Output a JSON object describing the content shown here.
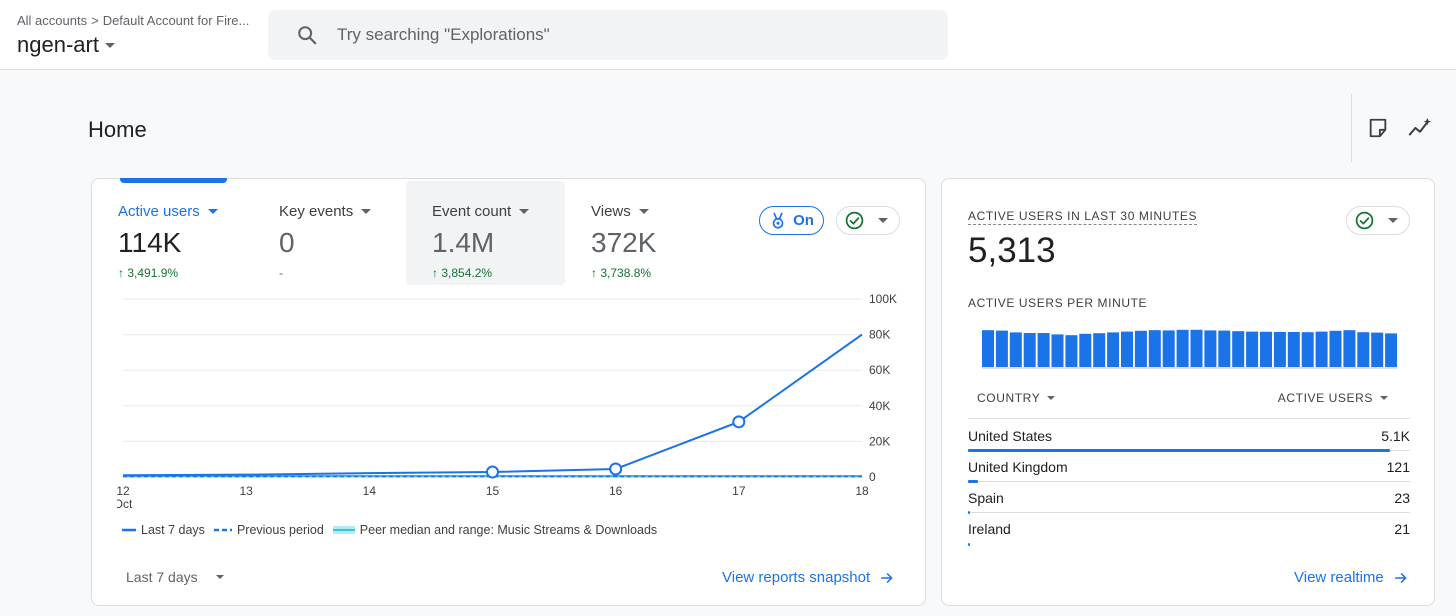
{
  "header": {
    "breadcrumb": [
      "All accounts",
      "Default Account for Fire..."
    ],
    "property": "ngen-art",
    "search_placeholder": "Try searching \"Explorations\""
  },
  "page": {
    "title": "Home"
  },
  "main_card": {
    "metrics": [
      {
        "label": "Active users",
        "value": "114K",
        "change": "↑ 3,491.9%",
        "selected": true
      },
      {
        "label": "Key events",
        "value": "0",
        "change": "-"
      },
      {
        "label": "Event count",
        "value": "1.4M",
        "change": "↑ 3,854.2%"
      },
      {
        "label": "Views",
        "value": "372K",
        "change": "↑ 3,738.8%"
      }
    ],
    "insights_chip": "On",
    "legend": {
      "current": "Last 7 days",
      "previous": "Previous period",
      "peer": "Peer median and range: Music Streams & Downloads"
    },
    "date_range": "Last 7 days",
    "link": "View reports snapshot"
  },
  "chart_data": {
    "type": "line",
    "title": "Active users",
    "xlabel": "",
    "ylabel": "",
    "x_tick_labels": [
      "12",
      "13",
      "14",
      "15",
      "16",
      "17",
      "18"
    ],
    "x_month_label": "Oct",
    "y_tick_labels": [
      "100K",
      "80K",
      "60K",
      "40K",
      "20K",
      "0"
    ],
    "ylim": [
      0,
      100000
    ],
    "series": [
      {
        "name": "Last 7 days",
        "x": [
          12,
          13,
          14,
          15,
          16,
          17,
          18
        ],
        "values": [
          1000,
          1300,
          2200,
          2800,
          4500,
          31000,
          80000
        ],
        "markers": [
          15,
          16,
          17
        ]
      },
      {
        "name": "Previous period",
        "x": [
          12,
          13,
          14,
          15,
          16,
          17,
          18
        ],
        "values": [
          300,
          300,
          300,
          300,
          300,
          300,
          300
        ]
      }
    ],
    "colors": {
      "current": "#1a73e8",
      "previous": "#1a73e8",
      "peer": "#12b5cb"
    }
  },
  "realtime": {
    "title": "ACTIVE USERS IN LAST 30 MINUTES",
    "value": "5,313",
    "subtitle": "ACTIVE USERS PER MINUTE",
    "per_minute": [
      184,
      182,
      173,
      170,
      170,
      163,
      159,
      166,
      169,
      173,
      177,
      181,
      184,
      183,
      186,
      186,
      183,
      182,
      179,
      177,
      176,
      175,
      175,
      174,
      177,
      181,
      184,
      174,
      172,
      168
    ],
    "table_headers": {
      "country": "COUNTRY",
      "users": "ACTIVE USERS"
    },
    "rows": [
      {
        "country": "United States",
        "value": "5.1K",
        "share": 0.96
      },
      {
        "country": "United Kingdom",
        "value": "121",
        "share": 0.024
      },
      {
        "country": "Spain",
        "value": "23",
        "share": 0.005
      },
      {
        "country": "Ireland",
        "value": "21",
        "share": 0.004
      }
    ],
    "link": "View realtime"
  }
}
